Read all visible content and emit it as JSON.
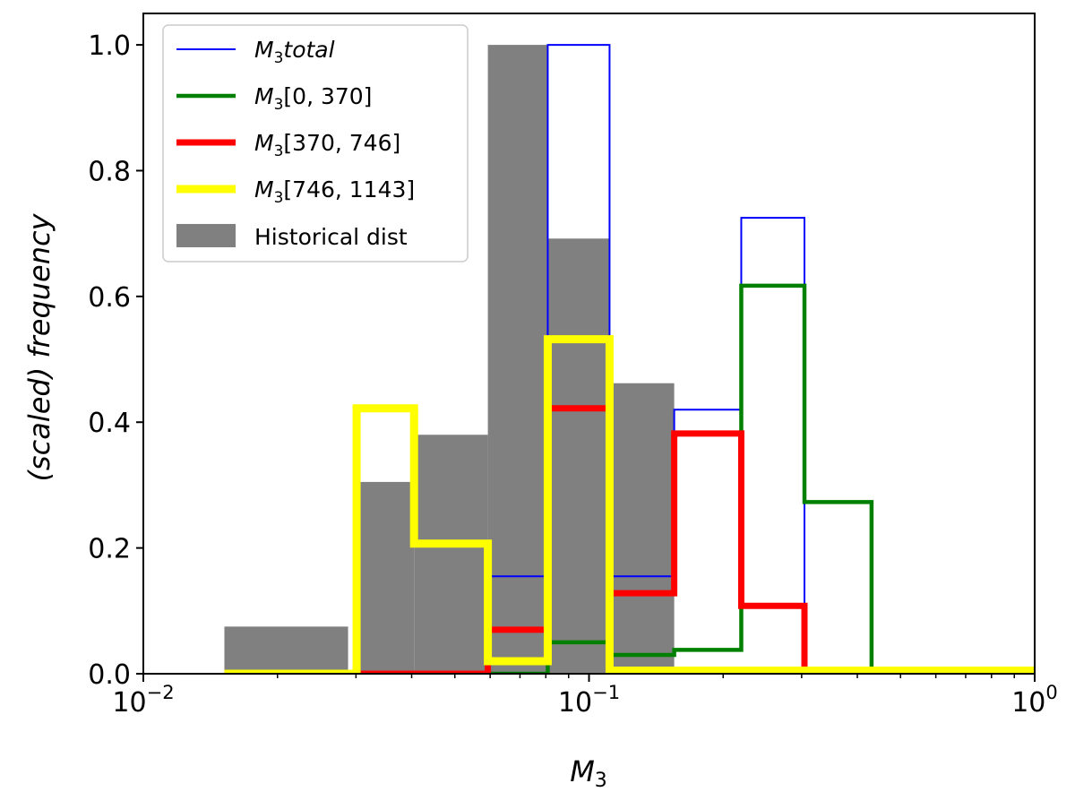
{
  "chart_data": {
    "type": "histogram-step",
    "x_scale": "log",
    "xlim": [
      0.01,
      1.0
    ],
    "ylim": [
      0.0,
      1.05
    ],
    "xlabel": "M3",
    "ylabel": "(scaled)    frequency",
    "x_ticks": [
      {
        "value": 0.01,
        "base": "10",
        "exp": "−2"
      },
      {
        "value": 0.1,
        "base": "10",
        "exp": "−1"
      },
      {
        "value": 1.0,
        "base": "10",
        "exp": "0"
      }
    ],
    "y_ticks": [
      {
        "value": 0.0,
        "label": "0.0"
      },
      {
        "value": 0.2,
        "label": "0.2"
      },
      {
        "value": 0.4,
        "label": "0.4"
      },
      {
        "value": 0.6,
        "label": "0.6"
      },
      {
        "value": 0.8,
        "label": "0.8"
      },
      {
        "value": 1.0,
        "label": "1.0"
      }
    ],
    "historical": {
      "name": "Historical dist",
      "color": "#808080",
      "bins": [
        {
          "x0": 0.0152,
          "x1": 0.0288,
          "value": 0.075
        },
        {
          "x0": 0.0301,
          "x1": 0.0405,
          "value": 0.305
        },
        {
          "x0": 0.0405,
          "x1": 0.0593,
          "value": 0.38
        },
        {
          "x0": 0.0593,
          "x1": 0.0808,
          "value": 1.0
        },
        {
          "x0": 0.0808,
          "x1": 0.1112,
          "value": 0.692
        },
        {
          "x0": 0.1112,
          "x1": 0.1553,
          "value": 0.462
        }
      ]
    },
    "series": [
      {
        "key": "total",
        "legend_main": "M",
        "legend_sub": "3",
        "legend_rest": "total",
        "legend_italic_rest": true,
        "color": "#0000ff",
        "stroke": 2,
        "edges": [
          0.0152,
          0.0301,
          0.0405,
          0.0593,
          0.0808,
          0.1112,
          0.1553,
          0.2196,
          0.3044,
          0.4305,
          1.0
        ],
        "values": [
          0.0,
          0.0,
          0.0,
          0.155,
          1.0,
          0.155,
          0.42,
          0.725,
          0.0,
          0.0
        ]
      },
      {
        "key": "g0",
        "legend_main": "M",
        "legend_sub": "3",
        "legend_rest": "[0, 370]",
        "legend_italic_rest": false,
        "color": "#008000",
        "stroke": 4.5,
        "edges": [
          0.0152,
          0.0301,
          0.0405,
          0.0593,
          0.0808,
          0.1112,
          0.1553,
          0.2196,
          0.3044,
          0.4305,
          1.0
        ],
        "values": [
          0.0,
          0.0,
          0.0,
          0.0,
          0.05,
          0.03,
          0.038,
          0.617,
          0.273,
          0.0
        ]
      },
      {
        "key": "g1",
        "legend_main": "M",
        "legend_sub": "3",
        "legend_rest": "[370, 746]",
        "legend_italic_rest": false,
        "color": "#ff0000",
        "stroke": 7,
        "edges": [
          0.0152,
          0.0301,
          0.0405,
          0.0593,
          0.0808,
          0.1112,
          0.1553,
          0.2196,
          0.3044,
          0.4305,
          1.0
        ],
        "values": [
          0.0,
          0.0,
          0.0,
          0.07,
          0.422,
          0.128,
          0.382,
          0.108,
          0.0,
          0.0
        ]
      },
      {
        "key": "g2",
        "legend_main": "M",
        "legend_sub": "3",
        "legend_rest": "[746, 1143]",
        "legend_italic_rest": false,
        "color": "#ffff00",
        "stroke": 9,
        "edges": [
          0.0152,
          0.0301,
          0.0405,
          0.0593,
          0.0808,
          0.1112,
          0.1553,
          0.2196,
          0.3044,
          0.4305,
          1.0
        ],
        "values": [
          0.0,
          0.422,
          0.207,
          0.02,
          0.532,
          0.005,
          0.005,
          0.005,
          0.005,
          0.005
        ]
      }
    ]
  }
}
